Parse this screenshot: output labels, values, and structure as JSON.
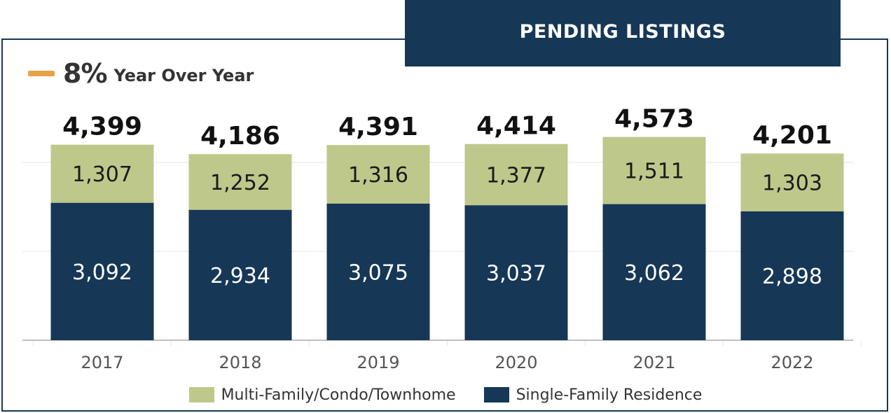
{
  "title": "PENDING LISTINGS",
  "yoy": {
    "value": "8%",
    "label": "Year Over Year",
    "indicator_color": "#e8a24a"
  },
  "colors": {
    "single_family": "#163756",
    "multi_family": "#bec88a",
    "frame": "#163756",
    "grid": "#e6e6e6",
    "axis": "#bfbfbf"
  },
  "chart_data": {
    "type": "bar",
    "stacked": true,
    "categories": [
      "2017",
      "2018",
      "2019",
      "2020",
      "2021",
      "2022"
    ],
    "series": [
      {
        "name": "Single-Family Residence",
        "values": [
          3092,
          2934,
          3075,
          3037,
          3062,
          2898
        ],
        "labels": [
          "3,092",
          "2,934",
          "3,075",
          "3,037",
          "3,062",
          "2,898"
        ]
      },
      {
        "name": "Multi-Family/Condo/Townhome",
        "values": [
          1307,
          1252,
          1316,
          1377,
          1511,
          1303
        ],
        "labels": [
          "1,307",
          "1,252",
          "1,316",
          "1,377",
          "1,511",
          "1,303"
        ]
      }
    ],
    "totals": [
      4399,
      4186,
      4391,
      4414,
      4573,
      4201
    ],
    "total_labels": [
      "4,399",
      "4,186",
      "4,391",
      "4,414",
      "4,573",
      "4,201"
    ],
    "ylim": [
      0,
      5000
    ],
    "grid": true,
    "legend_position": "bottom-center"
  }
}
